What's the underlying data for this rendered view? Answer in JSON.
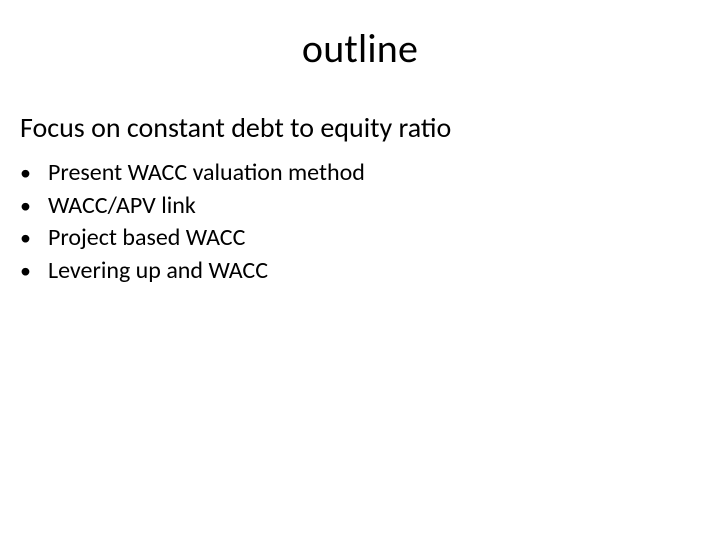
{
  "slide": {
    "title": "outline",
    "subtitle": "Focus on constant debt to equity ratio",
    "bullets": [
      "Present WACC valuation method",
      "WACC/APV link",
      "Project based WACC",
      "Levering up and WACC"
    ],
    "colors": {
      "background": "#ffffff",
      "text": "#000000"
    },
    "typography": {
      "title_fontsize": 40,
      "subtitle_fontsize": 28,
      "bullet_fontsize": 24,
      "font_family": "Calibri"
    }
  }
}
